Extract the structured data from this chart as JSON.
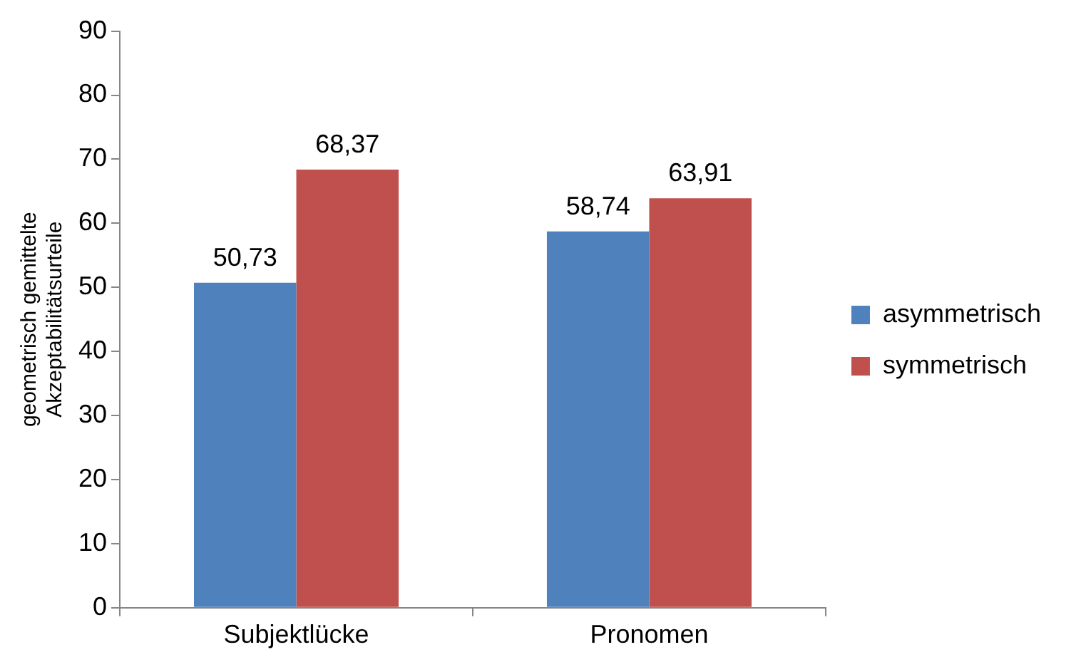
{
  "chart_data": {
    "type": "bar",
    "ylabel": "geometrisch gemittelte\nAkzeptabilitätsurteile",
    "categories": [
      "Subjektlücke",
      "Pronomen"
    ],
    "series": [
      {
        "name": "asymmetrisch",
        "color": "#4f81bd",
        "values": [
          50.73,
          58.74
        ],
        "value_labels": [
          "50,73",
          "58,74"
        ]
      },
      {
        "name": "symmetrisch",
        "color": "#c0504d",
        "values": [
          68.37,
          63.91
        ],
        "value_labels": [
          "68,37",
          "63,91"
        ]
      }
    ],
    "ylim": [
      0,
      90
    ],
    "yticks": [
      0,
      10,
      20,
      30,
      40,
      50,
      60,
      70,
      80,
      90
    ],
    "grid": false,
    "legend": "right"
  }
}
